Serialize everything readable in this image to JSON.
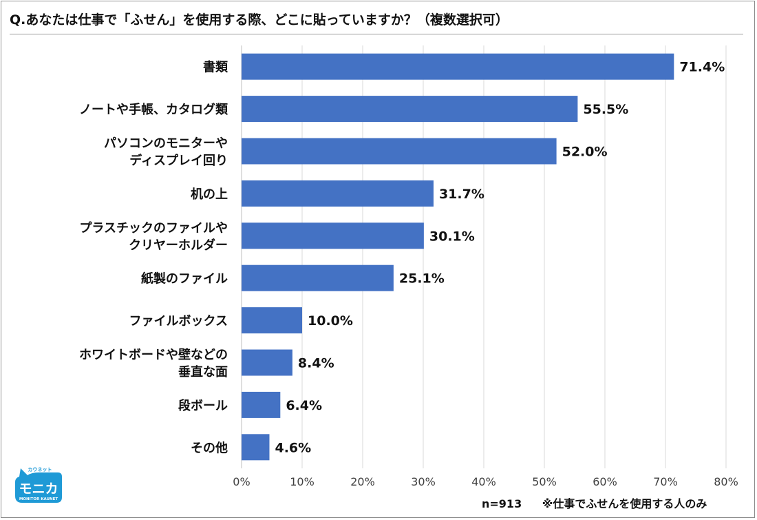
{
  "title": "Q.あなたは仕事で「ふせん」を使用する際、どこに貼っていますか？（複数選択可）",
  "footnote": {
    "n": "n=913",
    "note": "※仕事でふせんを使用する人のみ"
  },
  "logo": {
    "top_text": "カウネット",
    "main_text": "モニカ",
    "sub_text": "MONITOR KAUNET",
    "color": "#1f9ad6"
  },
  "chart_data": {
    "type": "bar",
    "orientation": "horizontal",
    "categories": [
      [
        "書類"
      ],
      [
        "ノートや手帳、カタログ類"
      ],
      [
        "パソコンのモニターや",
        "ディスプレイ回り"
      ],
      [
        "机の上"
      ],
      [
        "プラスチックのファイルや",
        "クリヤーホルダー"
      ],
      [
        "紙製のファイル"
      ],
      [
        "ファイルボックス"
      ],
      [
        "ホワイトボードや壁などの",
        "垂直な面"
      ],
      [
        "段ボール"
      ],
      [
        "その他"
      ]
    ],
    "values": [
      71.4,
      55.5,
      52.0,
      31.7,
      30.1,
      25.1,
      10.0,
      8.4,
      6.4,
      4.6
    ],
    "value_labels": [
      "71.4%",
      "55.5%",
      "52.0%",
      "31.7%",
      "30.1%",
      "25.1%",
      "10.0%",
      "8.4%",
      "6.4%",
      "4.6%"
    ],
    "xlim": [
      0,
      80
    ],
    "xticks": [
      0,
      10,
      20,
      30,
      40,
      50,
      60,
      70,
      80
    ],
    "xtick_labels": [
      "0%",
      "10%",
      "20%",
      "30%",
      "40%",
      "50%",
      "60%",
      "70%",
      "80%"
    ],
    "grid": true,
    "bar_color": "#4472c4",
    "grid_color": "#d9d9d9"
  }
}
